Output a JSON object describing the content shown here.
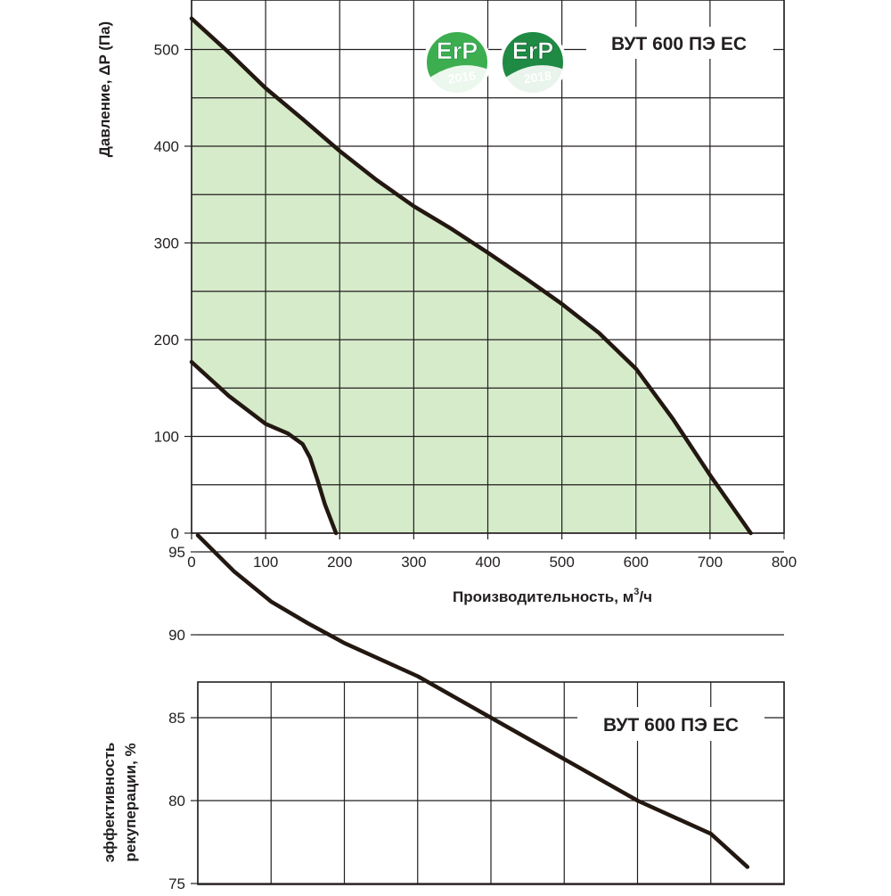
{
  "colors": {
    "fill": "#d6ebc9",
    "curve": "#231811",
    "grid": "#231f20",
    "erp_dark": "#1e8a44",
    "erp_light": "#3cae4f"
  },
  "badges": [
    {
      "icon": "erp-2016-badge-icon",
      "title": "ErP",
      "year": "2016"
    },
    {
      "icon": "erp-2018-badge-icon",
      "title": "ErP",
      "year": "2018"
    }
  ],
  "chart_data": [
    {
      "type": "area",
      "model_label": "ВУТ 600 ПЭ ЕС",
      "xlabel_main": "Производительность,  м",
      "xlabel_sup": "3",
      "xlabel_tail": "/ч",
      "ylabel": "Давление, ΔP (Па)",
      "xlim": [
        0,
        800
      ],
      "ylim": [
        0,
        550
      ],
      "xticks": [
        0,
        100,
        200,
        300,
        400,
        500,
        600,
        700,
        800
      ],
      "yticks": [
        0,
        100,
        200,
        300,
        400,
        500
      ],
      "grid": true,
      "series": [
        {
          "role": "upper",
          "points": [
            [
              0,
              532
            ],
            [
              50,
              497
            ],
            [
              100,
              460
            ],
            [
              150,
              428
            ],
            [
              200,
              395
            ],
            [
              250,
              365
            ],
            [
              300,
              338
            ],
            [
              350,
              315
            ],
            [
              400,
              290
            ],
            [
              450,
              264
            ],
            [
              500,
              237
            ],
            [
              550,
              207
            ],
            [
              600,
              170
            ],
            [
              650,
              118
            ],
            [
              700,
              60
            ],
            [
              755,
              0
            ]
          ]
        },
        {
          "role": "lower",
          "points": [
            [
              0,
              177
            ],
            [
              50,
              142
            ],
            [
              100,
              113
            ],
            [
              130,
              103
            ],
            [
              150,
              92
            ],
            [
              160,
              78
            ],
            [
              170,
              55
            ],
            [
              180,
              30
            ],
            [
              195,
              0
            ]
          ]
        }
      ]
    },
    {
      "type": "line",
      "model_label": "ВУТ 600 ПЭ ЕС",
      "ylabel_line1": "эффективность",
      "ylabel_line2": "рекуперации, %",
      "xlim": [
        0,
        800
      ],
      "ylim": [
        75,
        98
      ],
      "yticks": [
        75,
        80,
        85,
        90,
        95
      ],
      "grid": true,
      "series": [
        {
          "points": [
            [
              0,
              96
            ],
            [
              50,
              93.8
            ],
            [
              100,
              92
            ],
            [
              150,
              90.7
            ],
            [
              200,
              89.5
            ],
            [
              300,
              87.5
            ],
            [
              400,
              85
            ],
            [
              500,
              82.5
            ],
            [
              600,
              80
            ],
            [
              700,
              78
            ],
            [
              750,
              76
            ]
          ]
        }
      ]
    }
  ]
}
